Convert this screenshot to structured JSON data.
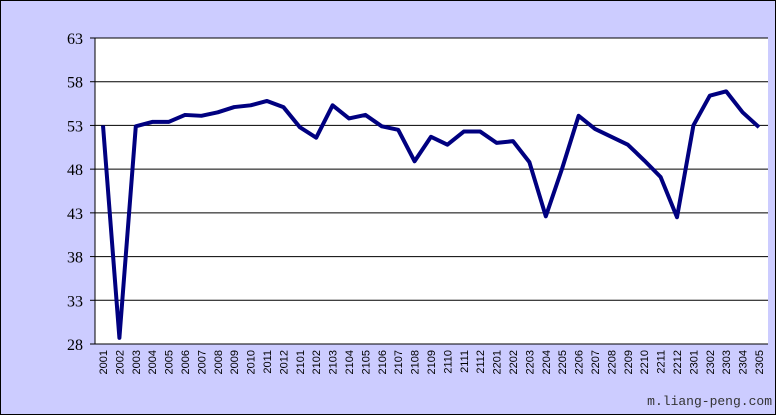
{
  "chart_data": {
    "type": "line",
    "categories": [
      "2001",
      "2002",
      "2003",
      "2004",
      "2005",
      "2006",
      "2007",
      "2008",
      "2009",
      "2010",
      "2011",
      "2012",
      "2101",
      "2102",
      "2103",
      "2104",
      "2105",
      "2106",
      "2107",
      "2108",
      "2109",
      "2110",
      "2111",
      "2112",
      "2201",
      "2202",
      "2203",
      "2204",
      "2205",
      "2206",
      "2207",
      "2208",
      "2209",
      "2210",
      "2211",
      "2212",
      "2301",
      "2302",
      "2303",
      "2304",
      "2305"
    ],
    "values": [
      53.0,
      28.7,
      52.9,
      53.4,
      53.4,
      54.2,
      54.1,
      54.5,
      55.1,
      55.3,
      55.8,
      55.1,
      52.8,
      51.6,
      55.3,
      53.8,
      54.2,
      52.9,
      52.5,
      48.9,
      51.7,
      50.8,
      52.3,
      52.3,
      51.0,
      51.2,
      48.8,
      42.6,
      48.1,
      54.1,
      52.6,
      51.7,
      50.8,
      49.0,
      47.1,
      42.5,
      53.0,
      56.4,
      56.9,
      54.5,
      52.8
    ],
    "color": "#000080",
    "ylim": [
      28,
      63
    ],
    "yticks": [
      28,
      33,
      38,
      43,
      48,
      53,
      58,
      63
    ],
    "grid": true,
    "watermark": "m.liang-peng.com"
  }
}
